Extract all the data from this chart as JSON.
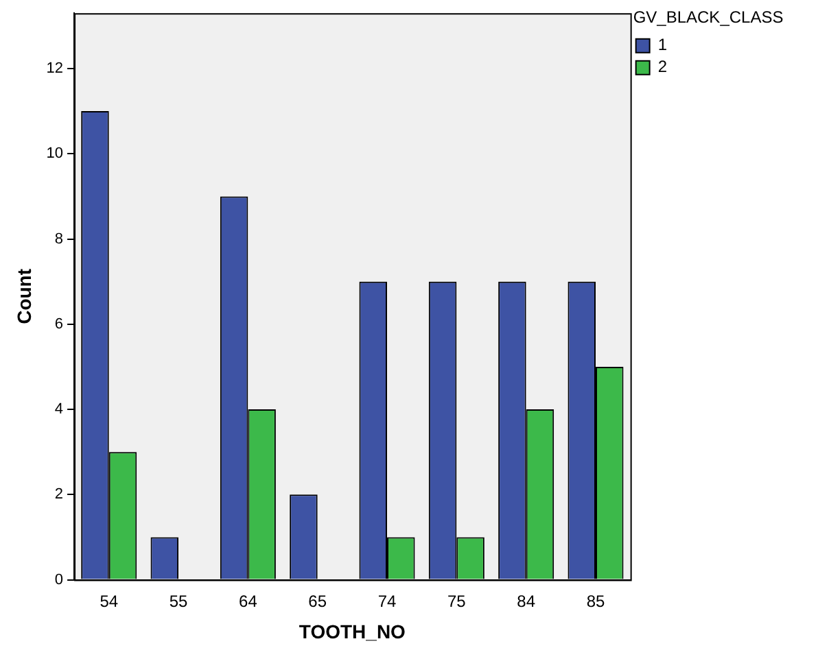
{
  "chart_data": {
    "type": "bar",
    "xlabel": "TOOTH_NO",
    "ylabel": "Count",
    "legend_title": "GV_BLACK_CLASS",
    "categories": [
      "54",
      "55",
      "64",
      "65",
      "74",
      "75",
      "84",
      "85"
    ],
    "series": [
      {
        "name": "1",
        "color": "#3e53a4",
        "values": [
          11,
          1,
          9,
          2,
          7,
          7,
          7,
          7
        ]
      },
      {
        "name": "2",
        "color": "#3cb94a",
        "values": [
          3,
          0,
          4,
          0,
          1,
          1,
          4,
          5
        ]
      }
    ],
    "ylim": [
      0,
      13.3
    ],
    "yticks": [
      0,
      2,
      4,
      6,
      8,
      10,
      12
    ],
    "grid": false,
    "legend": "top right"
  }
}
